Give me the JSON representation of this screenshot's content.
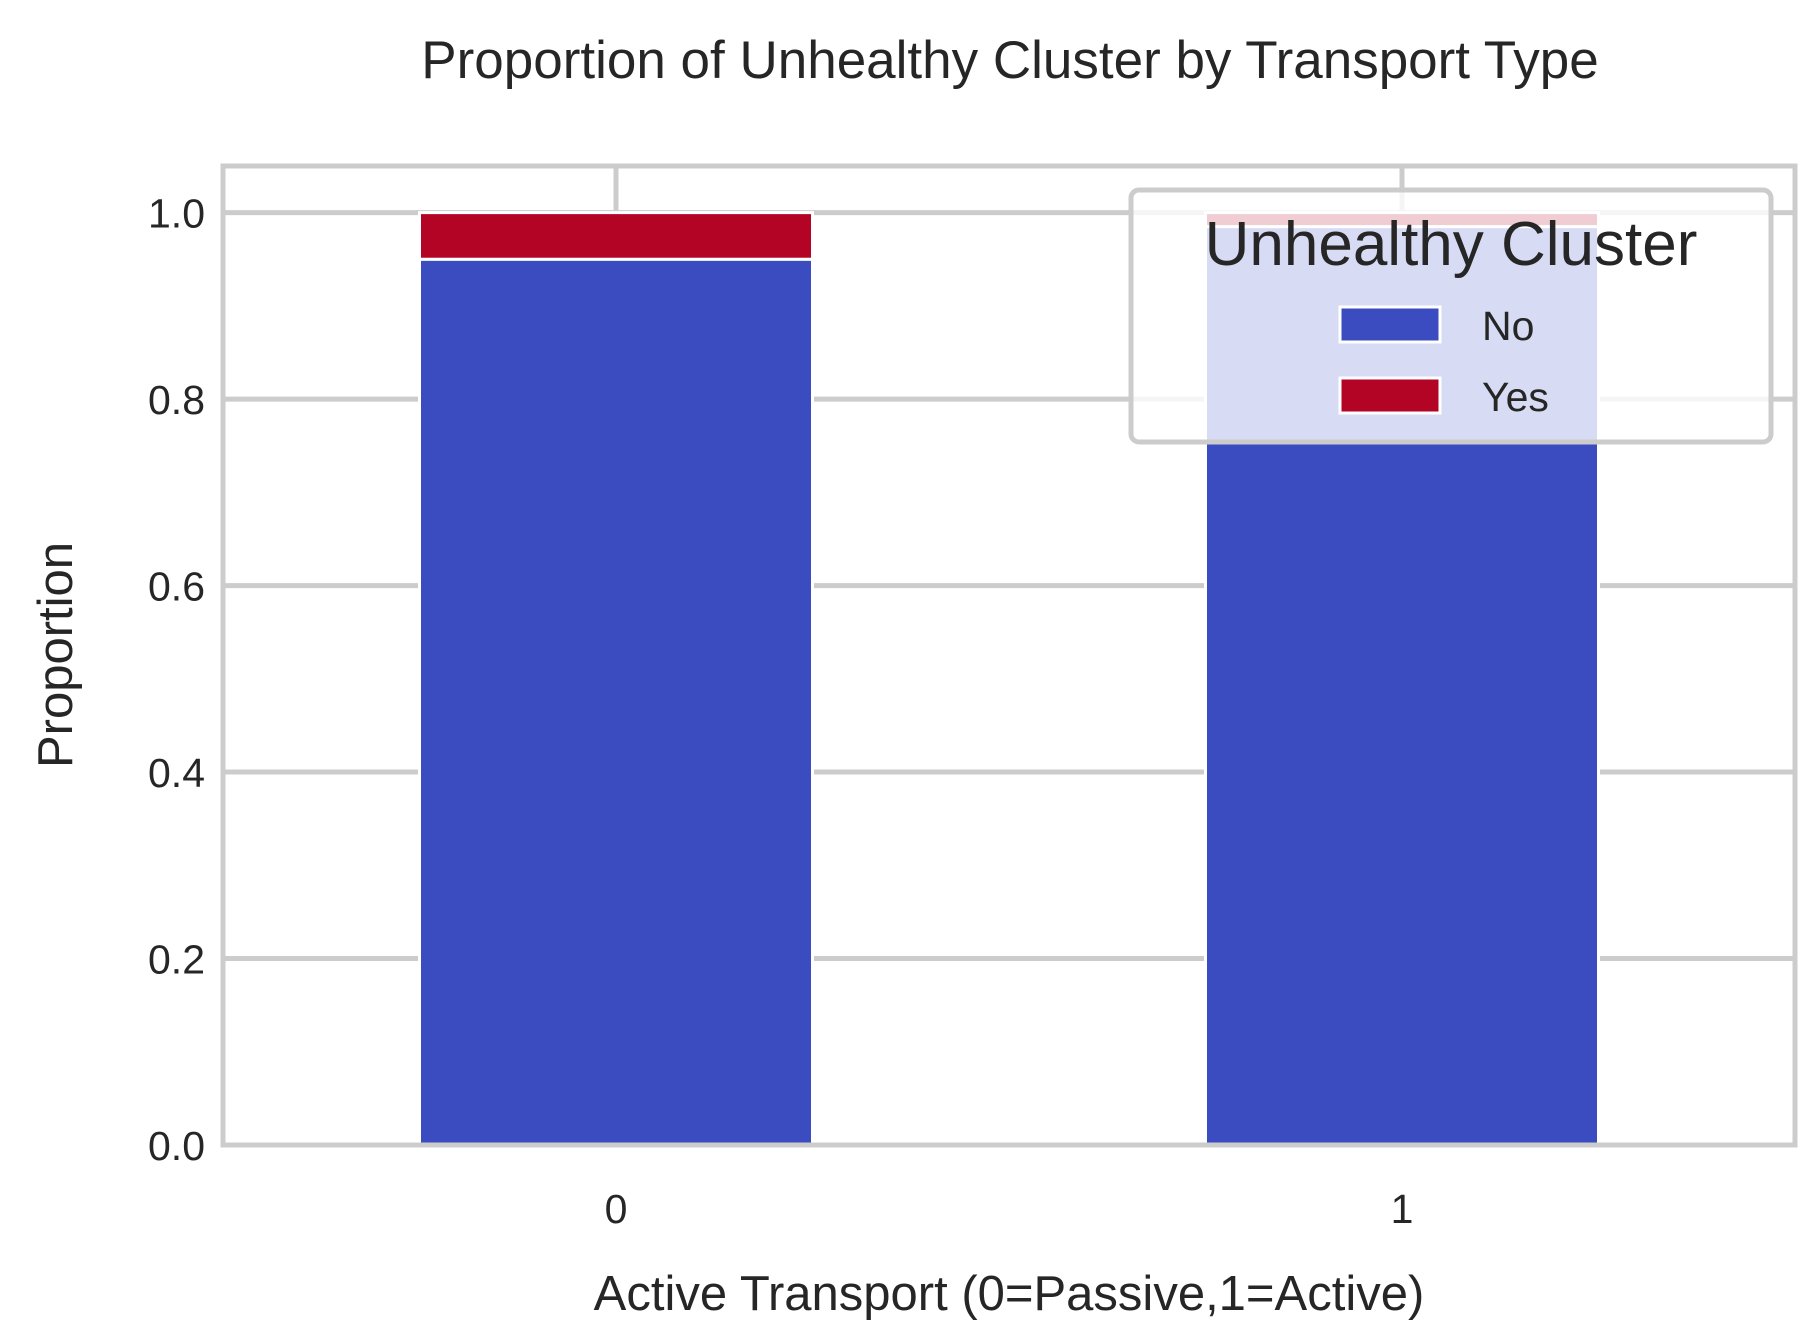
{
  "chart_data": {
    "type": "bar",
    "stacked": true,
    "title": "Proportion of Unhealthy Cluster by Transport Type",
    "xlabel": "Active Transport (0=Passive,1=Active)",
    "ylabel": "Proportion",
    "categories": [
      "0",
      "1"
    ],
    "ylim": [
      0,
      1.05
    ],
    "yticks": [
      "0.0",
      "0.2",
      "0.4",
      "0.6",
      "0.8",
      "1.0"
    ],
    "grid": true,
    "series": [
      {
        "name": "No",
        "values": [
          0.95,
          0.985
        ],
        "color": "#3b4cc0"
      },
      {
        "name": "Yes",
        "values": [
          0.05,
          0.015
        ],
        "color": "#b40426"
      }
    ],
    "legend": {
      "title": "Unhealthy Cluster",
      "placement": "top-right"
    }
  }
}
